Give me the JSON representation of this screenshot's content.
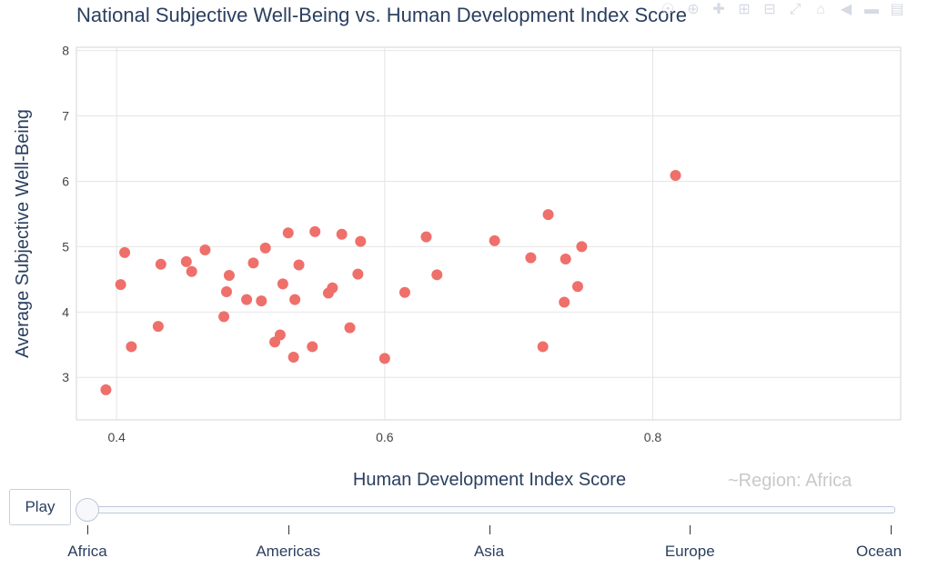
{
  "chart_data": {
    "type": "scatter",
    "title": "National Subjective Well-Being vs. Human Development Index Score",
    "xlabel": "Human Development Index Score",
    "ylabel": "Average Subjective Well-Being",
    "xlim": [
      0.37,
      0.985
    ],
    "ylim": [
      2.35,
      8.05
    ],
    "x_ticks": [
      0.4,
      0.6,
      0.8
    ],
    "x_tick_labels": [
      "0.4",
      "0.6",
      "0.8"
    ],
    "y_ticks": [
      3,
      4,
      5,
      6,
      7,
      8
    ],
    "y_tick_labels": [
      "3",
      "4",
      "5",
      "6",
      "7",
      "8"
    ],
    "grid": true,
    "marker_color": "#ef6f6a",
    "series": [
      {
        "points": [
          {
            "x": 0.392,
            "y": 2.81
          },
          {
            "x": 0.403,
            "y": 4.42
          },
          {
            "x": 0.406,
            "y": 4.91
          },
          {
            "x": 0.411,
            "y": 3.47
          },
          {
            "x": 0.431,
            "y": 3.78
          },
          {
            "x": 0.433,
            "y": 4.73
          },
          {
            "x": 0.452,
            "y": 4.77
          },
          {
            "x": 0.456,
            "y": 4.62
          },
          {
            "x": 0.466,
            "y": 4.95
          },
          {
            "x": 0.48,
            "y": 3.93
          },
          {
            "x": 0.482,
            "y": 4.31
          },
          {
            "x": 0.484,
            "y": 4.56
          },
          {
            "x": 0.497,
            "y": 4.19
          },
          {
            "x": 0.502,
            "y": 4.75
          },
          {
            "x": 0.508,
            "y": 4.17
          },
          {
            "x": 0.511,
            "y": 4.98
          },
          {
            "x": 0.518,
            "y": 3.54
          },
          {
            "x": 0.522,
            "y": 3.65
          },
          {
            "x": 0.524,
            "y": 4.43
          },
          {
            "x": 0.528,
            "y": 5.21
          },
          {
            "x": 0.532,
            "y": 3.31
          },
          {
            "x": 0.533,
            "y": 4.19
          },
          {
            "x": 0.536,
            "y": 4.72
          },
          {
            "x": 0.546,
            "y": 3.47
          },
          {
            "x": 0.548,
            "y": 5.23
          },
          {
            "x": 0.558,
            "y": 4.29
          },
          {
            "x": 0.561,
            "y": 4.37
          },
          {
            "x": 0.568,
            "y": 5.19
          },
          {
            "x": 0.574,
            "y": 3.76
          },
          {
            "x": 0.58,
            "y": 4.58
          },
          {
            "x": 0.582,
            "y": 5.08
          },
          {
            "x": 0.6,
            "y": 3.29
          },
          {
            "x": 0.615,
            "y": 4.3
          },
          {
            "x": 0.631,
            "y": 5.15
          },
          {
            "x": 0.639,
            "y": 4.57
          },
          {
            "x": 0.682,
            "y": 5.09
          },
          {
            "x": 0.709,
            "y": 4.83
          },
          {
            "x": 0.718,
            "y": 3.47
          },
          {
            "x": 0.722,
            "y": 5.49
          },
          {
            "x": 0.734,
            "y": 4.15
          },
          {
            "x": 0.735,
            "y": 4.81
          },
          {
            "x": 0.744,
            "y": 4.39
          },
          {
            "x": 0.747,
            "y": 5.0
          },
          {
            "x": 0.817,
            "y": 6.09
          }
        ]
      }
    ]
  },
  "controls": {
    "play_label": "Play",
    "slider_steps": [
      "Africa",
      "Americas",
      "Asia",
      "Europe",
      "Ocean"
    ],
    "active_step": 0,
    "current_value_label": "~Region: Africa"
  }
}
